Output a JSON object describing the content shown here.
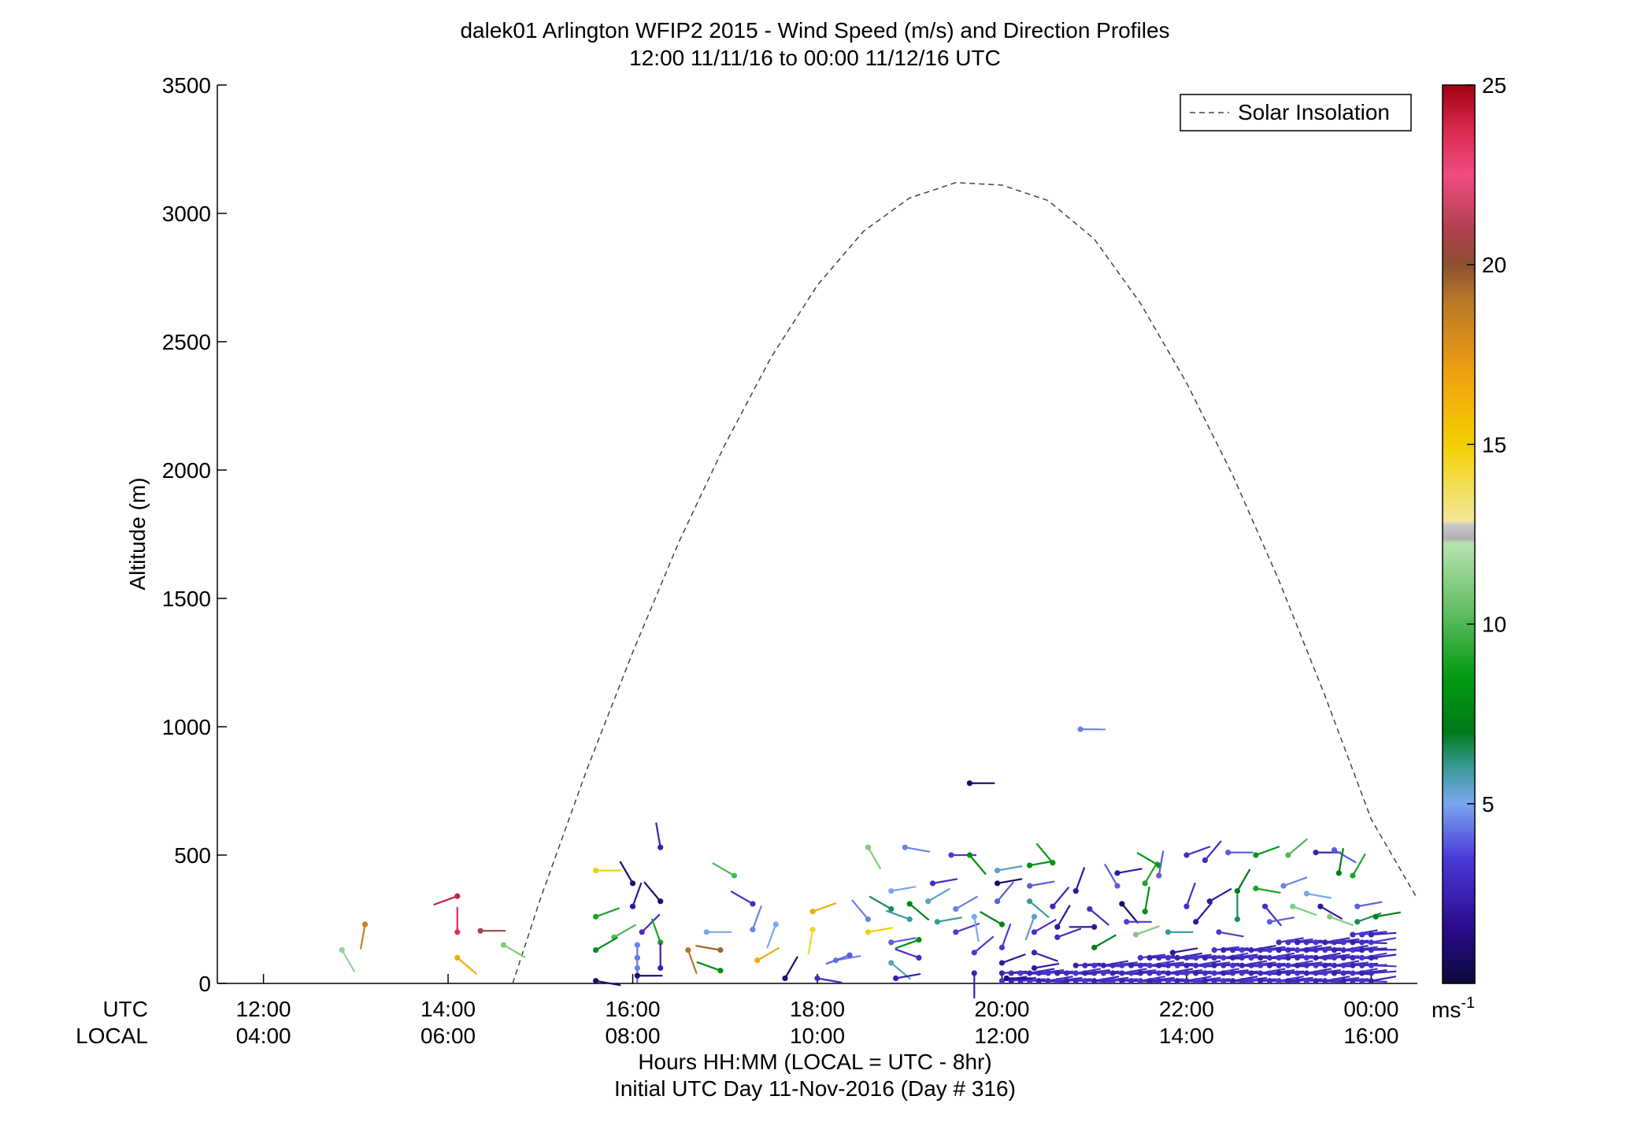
{
  "chart_data": {
    "type": "scatter",
    "title": "dalek01 Arlington WFIP2 2015 - Wind Speed (m/s) and Direction Profiles",
    "subtitle": "12:00 11/11/16 to 00:00 11/12/16  UTC",
    "ylabel": "Altitude (m)",
    "xlabel": "Hours HH:MM  (LOCAL = UTC - 8hr)",
    "xlabel2": "Initial UTC Day 11-Nov-2016 (Day # 316)",
    "row_label_utc": "UTC",
    "row_label_local": "LOCAL",
    "utc_ticks": [
      "12:00",
      "14:00",
      "16:00",
      "18:00",
      "20:00",
      "22:00",
      "00:00"
    ],
    "local_ticks": [
      "04:00",
      "06:00",
      "08:00",
      "10:00",
      "12:00",
      "14:00",
      "16:00"
    ],
    "xlim": [
      11.5,
      24.5
    ],
    "ylim": [
      0,
      3500
    ],
    "y_ticks": [
      "0",
      "500",
      "1000",
      "1500",
      "2000",
      "2500",
      "3000",
      "3500"
    ],
    "legend": {
      "entries": [
        "Solar Insolation"
      ],
      "placement": "top-right"
    },
    "colorbar": {
      "ticks": [
        "5",
        "10",
        "15",
        "20",
        "25"
      ],
      "unit": "ms",
      "unit_sup": "-1",
      "range": [
        0,
        25
      ]
    },
    "solar_insolation": [
      [
        14.7,
        0
      ],
      [
        15.0,
        330
      ],
      [
        15.5,
        830
      ],
      [
        16.0,
        1290
      ],
      [
        16.5,
        1720
      ],
      [
        17.0,
        2100
      ],
      [
        17.5,
        2440
      ],
      [
        18.0,
        2720
      ],
      [
        18.5,
        2930
      ],
      [
        19.0,
        3060
      ],
      [
        19.5,
        3120
      ],
      [
        20.0,
        3110
      ],
      [
        20.5,
        3050
      ],
      [
        21.0,
        2900
      ],
      [
        21.5,
        2650
      ],
      [
        22.0,
        2340
      ],
      [
        22.5,
        1980
      ],
      [
        23.0,
        1570
      ],
      [
        23.5,
        1120
      ],
      [
        24.0,
        640
      ],
      [
        24.5,
        330
      ]
    ],
    "wind_barbs": [
      [
        12.85,
        130,
        11.5,
        150
      ],
      [
        13.1,
        230,
        18.5,
        190
      ],
      [
        14.1,
        340,
        24.0,
        250
      ],
      [
        14.1,
        200,
        23.5,
        0
      ],
      [
        14.1,
        100,
        16.5,
        130
      ],
      [
        14.35,
        205,
        20.5,
        90
      ],
      [
        14.6,
        150,
        11.0,
        120
      ],
      [
        15.6,
        440,
        15.0,
        90
      ],
      [
        15.6,
        260,
        9.0,
        70
      ],
      [
        15.8,
        180,
        10.0,
        60
      ],
      [
        15.6,
        130,
        8.0,
        60
      ],
      [
        15.6,
        10,
        1.0,
        100
      ],
      [
        16.0,
        390,
        1.0,
        330
      ],
      [
        16.0,
        300,
        2.0,
        20
      ],
      [
        16.1,
        200,
        3.0,
        45
      ],
      [
        16.05,
        150,
        4.5,
        180
      ],
      [
        16.05,
        100,
        4.2,
        180
      ],
      [
        16.05,
        60,
        4.5,
        0
      ],
      [
        16.05,
        30,
        1.0,
        90
      ],
      [
        16.3,
        530,
        2.5,
        350
      ],
      [
        16.3,
        320,
        1.0,
        320
      ],
      [
        16.3,
        160,
        9.0,
        340
      ],
      [
        16.3,
        60,
        2.5,
        0
      ],
      [
        16.6,
        130,
        19.0,
        160
      ],
      [
        16.8,
        200,
        5.0,
        90
      ],
      [
        16.95,
        130,
        19.5,
        280
      ],
      [
        16.95,
        50,
        8.0,
        290
      ],
      [
        17.1,
        420,
        10.0,
        300
      ],
      [
        17.3,
        210,
        4.5,
        20
      ],
      [
        17.3,
        310,
        3.0,
        300
      ],
      [
        17.35,
        90,
        16.5,
        60
      ],
      [
        17.55,
        230,
        5.0,
        200
      ],
      [
        17.65,
        20,
        1.0,
        30
      ],
      [
        17.95,
        280,
        16.5,
        70
      ],
      [
        17.95,
        210,
        14.5,
        190
      ],
      [
        18.0,
        20,
        3.0,
        100
      ],
      [
        18.2,
        90,
        4.5,
        80
      ],
      [
        18.35,
        110,
        4.0,
        250
      ],
      [
        18.55,
        530,
        11.0,
        150
      ],
      [
        18.55,
        250,
        4.5,
        320
      ],
      [
        18.55,
        200,
        15.0,
        80
      ],
      [
        18.8,
        360,
        5.0,
        80
      ],
      [
        18.8,
        290,
        6.5,
        300
      ],
      [
        18.8,
        160,
        4.0,
        80
      ],
      [
        18.8,
        80,
        5.5,
        130
      ],
      [
        18.85,
        20,
        2.5,
        80
      ],
      [
        18.95,
        530,
        4.5,
        100
      ],
      [
        19.0,
        310,
        7.5,
        130
      ],
      [
        19.0,
        250,
        6.0,
        290
      ],
      [
        19.1,
        170,
        8.0,
        250
      ],
      [
        19.1,
        100,
        3.0,
        290
      ],
      [
        19.2,
        320,
        5.5,
        60
      ],
      [
        19.25,
        390,
        3.0,
        80
      ],
      [
        19.3,
        240,
        6.0,
        80
      ],
      [
        19.45,
        500,
        3.5,
        90
      ],
      [
        19.5,
        290,
        4.5,
        60
      ],
      [
        19.5,
        200,
        3.5,
        70
      ],
      [
        19.65,
        780,
        1.0,
        90
      ],
      [
        19.65,
        500,
        8.0,
        140
      ],
      [
        19.7,
        260,
        5.0,
        170
      ],
      [
        19.7,
        120,
        3.5,
        50
      ],
      [
        19.7,
        40,
        2.5,
        180
      ],
      [
        19.95,
        440,
        5.5,
        80
      ],
      [
        19.95,
        390,
        1.0,
        80
      ],
      [
        19.95,
        320,
        4.0,
        40
      ],
      [
        20.0,
        230,
        7.5,
        300
      ],
      [
        20.0,
        140,
        3.5,
        20
      ],
      [
        20.0,
        80,
        2.0,
        70
      ],
      [
        20.05,
        20,
        1.5,
        90
      ],
      [
        20.3,
        460,
        8.0,
        80
      ],
      [
        20.3,
        380,
        4.0,
        80
      ],
      [
        20.3,
        320,
        6.0,
        130
      ],
      [
        20.35,
        260,
        5.5,
        200
      ],
      [
        20.35,
        200,
        3.0,
        60
      ],
      [
        20.35,
        120,
        2.5,
        110
      ],
      [
        20.35,
        60,
        2.0,
        80
      ],
      [
        20.55,
        470,
        8.5,
        320
      ],
      [
        20.55,
        300,
        2.5,
        40
      ],
      [
        20.6,
        220,
        2.0,
        30
      ],
      [
        20.6,
        180,
        3.0,
        70
      ],
      [
        20.85,
        990,
        4.5,
        90
      ],
      [
        20.8,
        360,
        2.0,
        20
      ],
      [
        20.95,
        290,
        3.0,
        130
      ],
      [
        21.0,
        220,
        2.0,
        270
      ],
      [
        21.0,
        140,
        7.0,
        60
      ],
      [
        21.25,
        430,
        2.0,
        80
      ],
      [
        21.25,
        380,
        4.0,
        330
      ],
      [
        21.3,
        310,
        1.0,
        140
      ],
      [
        21.35,
        240,
        3.5,
        90
      ],
      [
        21.55,
        390,
        9.0,
        30
      ],
      [
        21.55,
        280,
        8.0,
        10
      ],
      [
        21.7,
        460,
        8.5,
        300
      ],
      [
        21.7,
        420,
        4.0,
        10
      ],
      [
        21.8,
        200,
        6.0,
        90
      ],
      [
        21.85,
        120,
        2.0,
        80
      ],
      [
        22.0,
        500,
        3.0,
        70
      ],
      [
        22.0,
        300,
        3.0,
        20
      ],
      [
        22.1,
        240,
        2.0,
        40
      ],
      [
        22.2,
        480,
        3.0,
        40
      ],
      [
        22.25,
        320,
        2.0,
        60
      ],
      [
        22.35,
        200,
        3.5,
        100
      ],
      [
        22.45,
        510,
        4.0,
        90
      ],
      [
        22.55,
        360,
        7.0,
        30
      ],
      [
        22.55,
        250,
        6.5,
        0
      ],
      [
        22.75,
        500,
        8.5,
        70
      ],
      [
        22.75,
        370,
        9.0,
        100
      ],
      [
        22.85,
        300,
        3.0,
        140
      ],
      [
        23.1,
        500,
        10.0,
        50
      ],
      [
        23.05,
        380,
        4.5,
        70
      ],
      [
        23.15,
        300,
        11.0,
        110
      ],
      [
        23.4,
        510,
        2.5,
        90
      ],
      [
        23.45,
        300,
        2.0,
        120
      ],
      [
        23.6,
        520,
        4.0,
        120
      ],
      [
        23.65,
        430,
        7.0,
        10
      ],
      [
        23.8,
        420,
        9.0,
        30
      ],
      [
        23.85,
        300,
        4.0,
        80
      ],
      [
        23.85,
        240,
        6.5,
        70
      ],
      [
        24.05,
        260,
        7.5,
        80
      ],
      [
        23.55,
        260,
        11.0,
        110
      ],
      [
        23.3,
        350,
        5.0,
        100
      ],
      [
        22.9,
        240,
        4.0,
        80
      ],
      [
        21.45,
        190,
        11.0,
        70
      ]
    ],
    "dense_lower_barbs": {
      "x_start": 20.0,
      "x_end": 24.0,
      "step": 0.1,
      "altitudes": [
        10,
        40,
        70,
        100,
        130,
        160,
        190
      ],
      "speed": 2.5,
      "direction": 80
    },
    "grid": false
  }
}
